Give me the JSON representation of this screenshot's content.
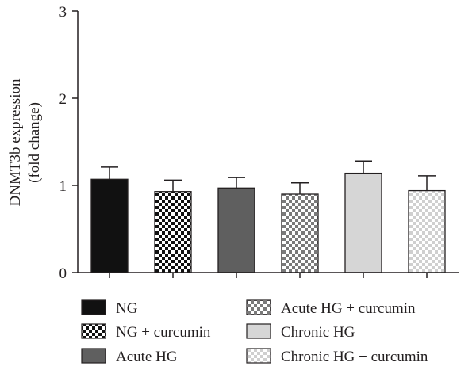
{
  "chart_data": {
    "type": "bar",
    "categories": [
      "NG",
      "NG + curcumin",
      "Acute HG",
      "Acute HG + curcumin",
      "Chronic HG",
      "Chronic HG + curcumin"
    ],
    "values": [
      1.07,
      0.93,
      0.97,
      0.9,
      1.14,
      0.94
    ],
    "errors": [
      0.14,
      0.13,
      0.12,
      0.13,
      0.14,
      0.17
    ],
    "ylabel_line1": "DNMT3b expression",
    "ylabel_line2": "(fold change)",
    "ylim": [
      0,
      3
    ],
    "yticks": [
      "0",
      "1",
      "2",
      "3"
    ],
    "grid": false,
    "legend_position": "bottom",
    "fills": [
      "solid-black",
      "checker-black",
      "solid-dark-gray",
      "checker-gray",
      "solid-light-gray",
      "checker-light"
    ],
    "colors": {
      "axis": "#231f20",
      "black": "#111111",
      "dark_gray": "#5f5f5f",
      "light_gray": "#d6d6d6",
      "checker_gray": "#7a7a7a",
      "checker_light": "#cfcfcf"
    }
  }
}
